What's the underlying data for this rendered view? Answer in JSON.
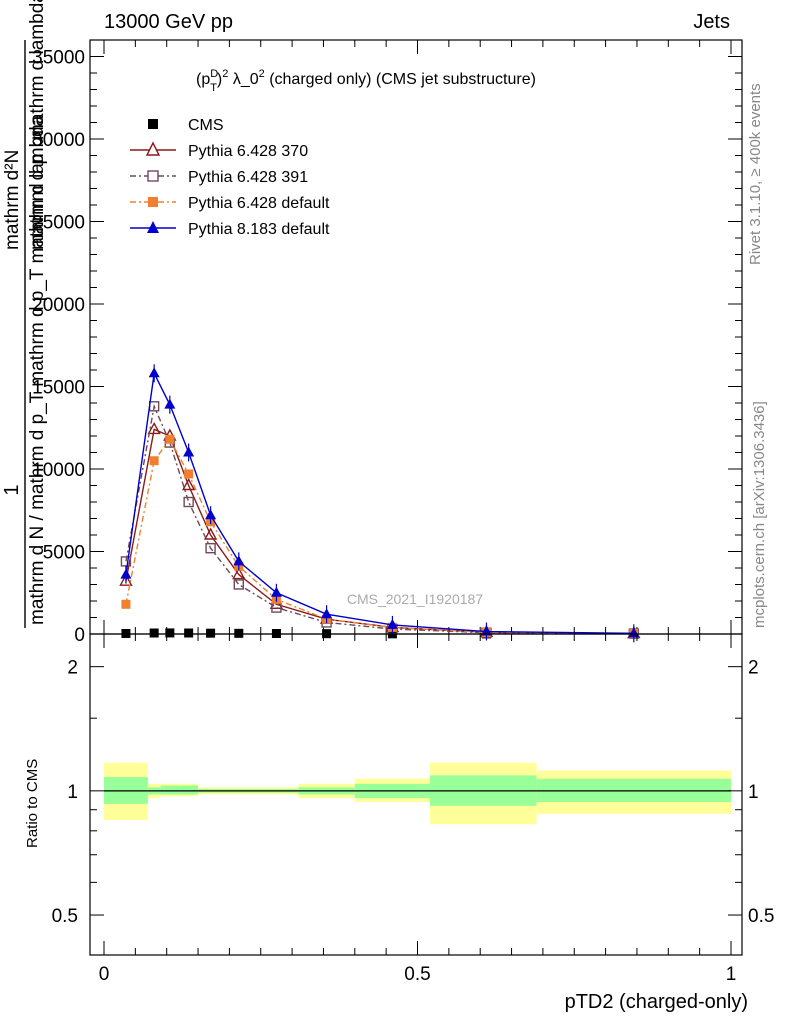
{
  "header": {
    "energy_label": "13000 GeV pp",
    "category_label": "Jets"
  },
  "side_labels": {
    "rivet": "Rivet 3.1.10, ≥ 400k events",
    "source": "mcplots.cern.ch [arXiv:1306.3436]"
  },
  "chart_data": [
    {
      "type": "line",
      "title": "(pTD)2 λ_02 (charged only) (CMS jet substructure)",
      "title_parts": {
        "base": "(p",
        "sup1": "D",
        "sub1": "T",
        "mid": ")",
        "sup2": "2",
        "lam": " λ_0",
        "sup3": "2",
        "tail": " (charged only) (CMS jet substructure)"
      },
      "analysis_label": "CMS_2021_I1920187",
      "ylabel": {
        "numer": "1",
        "denom": "mathrm d N / mathrm d p_T mathrm d p_T mathrm d lambda",
        "numer2": "mathrm d²N",
        "parts": [
          "mathrm d²N",
          "mathrm d p",
          "mathrm d lambda",
          "T"
        ]
      },
      "ylim": [
        0,
        36000
      ],
      "yticks": [
        0,
        5000,
        10000,
        15000,
        20000,
        25000,
        30000,
        35000
      ],
      "ytick_labels": [
        "0",
        "5000",
        "10000",
        "15000",
        "20000",
        "25000",
        "30000",
        "35000"
      ],
      "xlim": [
        0,
        1
      ],
      "x": [
        0.035,
        0.08,
        0.105,
        0.135,
        0.17,
        0.215,
        0.275,
        0.355,
        0.46,
        0.61,
        0.845
      ],
      "series": [
        {
          "name": "CMS",
          "marker": "square",
          "color": "#000000",
          "values": [
            30,
            60,
            65,
            60,
            50,
            40,
            30,
            20,
            10,
            5,
            2
          ]
        },
        {
          "name": "Pythia 6.428 370",
          "marker": "triangle-open",
          "color": "#8b1a1a",
          "dash": "solid",
          "values": [
            3200,
            12400,
            12000,
            9000,
            6000,
            3600,
            1800,
            900,
            400,
            100,
            30
          ]
        },
        {
          "name": "Pythia 6.428 391",
          "marker": "square-open",
          "color": "#6e4a5a",
          "dash": "dashdot",
          "values": [
            4400,
            13800,
            11600,
            8000,
            5200,
            3000,
            1600,
            700,
            300,
            80,
            25
          ]
        },
        {
          "name": "Pythia 6.428 default",
          "marker": "square",
          "color": "#f08030",
          "dash": "dashdot",
          "values": [
            1800,
            10500,
            11800,
            9700,
            6800,
            4100,
            2100,
            900,
            400,
            100,
            30
          ]
        },
        {
          "name": "Pythia 8.183 default",
          "marker": "triangle",
          "color": "#0000cc",
          "dash": "solid",
          "values": [
            3600,
            15800,
            13900,
            11000,
            7200,
            4400,
            2500,
            1200,
            550,
            150,
            40
          ]
        }
      ],
      "legend_position": "top-left"
    },
    {
      "type": "area",
      "ylabel": "Ratio to CMS",
      "xlabel": "pTD2 (charged-only)",
      "ylim": [
        0.4,
        2.4
      ],
      "yscale": "log",
      "yticks": [
        0.5,
        1,
        2
      ],
      "ytick_labels": [
        "0.5",
        "1",
        "2"
      ],
      "xlim": [
        0,
        1
      ],
      "xticks": [
        0,
        0.5,
        1
      ],
      "xtick_labels": [
        "0",
        "0.5",
        "1"
      ],
      "reference_line": 1,
      "bands": [
        {
          "x_from": 0.0,
          "x_to": 0.07,
          "stat": [
            0.93,
            1.08
          ],
          "total": [
            0.85,
            1.17
          ]
        },
        {
          "x_from": 0.07,
          "x_to": 0.09,
          "stat": [
            0.98,
            1.02
          ],
          "total": [
            0.96,
            1.04
          ]
        },
        {
          "x_from": 0.09,
          "x_to": 0.12,
          "stat": [
            0.98,
            1.03
          ],
          "total": [
            0.97,
            1.04
          ]
        },
        {
          "x_from": 0.12,
          "x_to": 0.15,
          "stat": [
            0.98,
            1.03
          ],
          "total": [
            0.97,
            1.04
          ]
        },
        {
          "x_from": 0.15,
          "x_to": 0.19,
          "stat": [
            0.99,
            1.01
          ],
          "total": [
            0.98,
            1.02
          ]
        },
        {
          "x_from": 0.19,
          "x_to": 0.24,
          "stat": [
            0.99,
            1.01
          ],
          "total": [
            0.98,
            1.02
          ]
        },
        {
          "x_from": 0.24,
          "x_to": 0.31,
          "stat": [
            0.99,
            1.01
          ],
          "total": [
            0.98,
            1.02
          ]
        },
        {
          "x_from": 0.31,
          "x_to": 0.4,
          "stat": [
            0.98,
            1.02
          ],
          "total": [
            0.96,
            1.04
          ]
        },
        {
          "x_from": 0.4,
          "x_to": 0.52,
          "stat": [
            0.96,
            1.04
          ],
          "total": [
            0.94,
            1.07
          ]
        },
        {
          "x_from": 0.52,
          "x_to": 0.69,
          "stat": [
            0.92,
            1.09
          ],
          "total": [
            0.83,
            1.17
          ]
        },
        {
          "x_from": 0.69,
          "x_to": 1.0,
          "stat": [
            0.94,
            1.07
          ],
          "total": [
            0.88,
            1.12
          ]
        }
      ],
      "band_colors": {
        "stat": "#99ff99",
        "total": "#ffff99"
      }
    }
  ]
}
